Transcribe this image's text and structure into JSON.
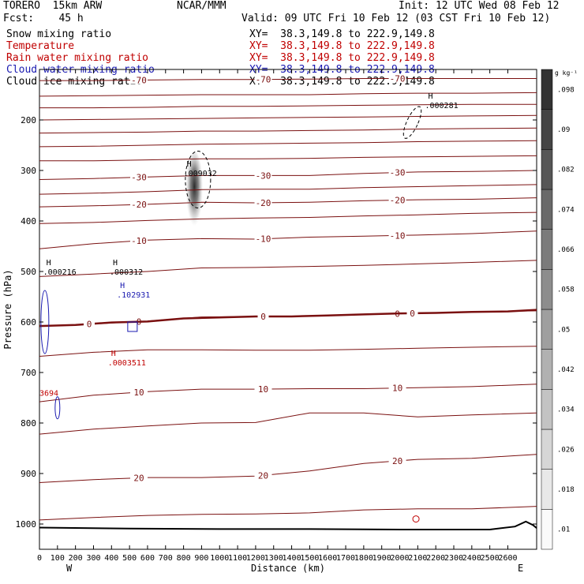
{
  "header": {
    "model": "TORERO  15km ARW",
    "forecast": "Fcst:    45 h",
    "center": "NCAR/MMM",
    "init": "Init: 12 UTC Wed 08 Feb 12",
    "valid": "Valid: 09 UTC Fri 10 Feb 12 (03 CST Fri 10 Feb 12)"
  },
  "fields": [
    {
      "name": "Snow mixing ratio",
      "xy": "XY=  38.3,149.8 to 222.9,149.8",
      "color": "#000000"
    },
    {
      "name": "Temperature",
      "xy": "XY=  38.3,149.8 to 222.9,149.8",
      "color": "#c00000"
    },
    {
      "name": "Rain water mixing ratio",
      "xy": "XY=  38.3,149.8 to 222.9,149.8",
      "color": "#c00000"
    },
    {
      "name": "Cloud water mixing ratio",
      "xy": "XY=  38.3,149.8 to 222.9,149.8",
      "color": "#1a1ab0"
    },
    {
      "name": "Cloud ice mixing ratio",
      "xy": "XY=  38.3,149.8 to 222.9,149.8",
      "color": "#000000"
    }
  ],
  "chart_data": {
    "type": "cross-section",
    "xlabel": "Distance (km)",
    "ylabel": "Pressure (hPa)",
    "xlim": [
      0,
      2760
    ],
    "ylim": [
      1050,
      100
    ],
    "x_ticks": [
      0,
      100,
      200,
      300,
      400,
      500,
      600,
      700,
      800,
      900,
      1000,
      1100,
      1200,
      1300,
      1400,
      1500,
      1600,
      1700,
      1800,
      1900,
      2000,
      2100,
      2200,
      2300,
      2400,
      2500,
      2600
    ],
    "x_tick_labels": [
      "0",
      "100",
      "200",
      "300",
      "400",
      "500",
      "600",
      "700",
      "800",
      "900",
      "1000",
      "1100",
      "1200",
      "1300",
      "1400",
      "1500",
      "1600",
      "1700",
      "1800",
      "1900",
      "2000",
      "2100",
      "2200",
      "2300",
      "2400",
      "2500",
      "2600"
    ],
    "y_ticks": [
      200,
      300,
      400,
      500,
      600,
      700,
      800,
      900,
      1000
    ],
    "y_tick_labels": [
      "200",
      "300",
      "400",
      "500",
      "600",
      "700",
      "800",
      "900",
      "1000"
    ],
    "endpoints": {
      "left": "W",
      "right": "E"
    },
    "colorbar": {
      "unit": "g kg⁻¹",
      "levels": [
        0.01,
        0.018,
        0.026,
        0.034,
        0.042,
        0.05,
        0.058,
        0.066,
        0.074,
        0.082,
        0.09,
        0.098
      ],
      "labels": [
        ".01",
        ".018",
        ".026",
        ".034",
        ".042",
        ".05",
        ".058",
        ".066",
        ".074",
        ".082",
        ".09",
        ".098"
      ]
    },
    "temperature_contours": [
      {
        "label": "-70",
        "x": [
          0,
          300,
          600,
          900,
          1200,
          1500,
          1800,
          2100,
          2400,
          2760
        ],
        "p": [
          122,
          122,
          121,
          120,
          120,
          119,
          118,
          118,
          118,
          118
        ]
      },
      {
        "label": "",
        "x": [
          0,
          300,
          600,
          900,
          1200,
          1500,
          1800,
          2100,
          2400,
          2760
        ],
        "p": [
          153,
          152,
          151,
          150,
          150,
          150,
          148,
          147,
          147,
          146
        ]
      },
      {
        "label": "",
        "x": [
          0,
          300,
          600,
          900,
          1200,
          1500,
          1800,
          2100,
          2400,
          2760
        ],
        "p": [
          176,
          176,
          175,
          173,
          173,
          172,
          171,
          170,
          169,
          169
        ]
      },
      {
        "label": "",
        "x": [
          0,
          300,
          600,
          900,
          1200,
          1500,
          1800,
          2100,
          2400,
          2760
        ],
        "p": [
          200,
          199,
          198,
          197,
          196,
          195,
          194,
          193,
          192,
          191
        ]
      },
      {
        "label": "",
        "x": [
          0,
          300,
          600,
          900,
          1200,
          1500,
          1800,
          2100,
          2400,
          2760
        ],
        "p": [
          226,
          225,
          224,
          222,
          222,
          221,
          220,
          218,
          217,
          216
        ]
      },
      {
        "label": "",
        "x": [
          0,
          300,
          600,
          900,
          1200,
          1500,
          1800,
          2100,
          2400,
          2760
        ],
        "p": [
          253,
          252,
          250,
          248,
          247,
          246,
          245,
          243,
          242,
          241
        ]
      },
      {
        "label": "",
        "x": [
          0,
          300,
          600,
          900,
          1200,
          1500,
          1800,
          2100,
          2400,
          2760
        ],
        "p": [
          281,
          281,
          279,
          277,
          277,
          276,
          274,
          273,
          272,
          271
        ]
      },
      {
        "label": "-30",
        "x": [
          0,
          300,
          600,
          900,
          1200,
          1500,
          1800,
          2100,
          2400,
          2760
        ],
        "p": [
          318,
          316,
          313,
          310,
          310,
          310,
          306,
          303,
          302,
          300
        ]
      },
      {
        "label": "",
        "x": [
          0,
          300,
          600,
          900,
          1200,
          1500,
          1800,
          2100,
          2400,
          2760
        ],
        "p": [
          347,
          345,
          342,
          338,
          337,
          337,
          334,
          332,
          330,
          328
        ]
      },
      {
        "label": "-20",
        "x": [
          0,
          300,
          600,
          900,
          1200,
          1500,
          1800,
          2100,
          2400,
          2760
        ],
        "p": [
          372,
          370,
          367,
          363,
          364,
          363,
          360,
          358,
          357,
          354
        ]
      },
      {
        "label": "",
        "x": [
          0,
          300,
          600,
          900,
          1200,
          1500,
          1800,
          2100,
          2400,
          2760
        ],
        "p": [
          405,
          403,
          399,
          396,
          394,
          393,
          390,
          388,
          385,
          383
        ]
      },
      {
        "label": "-10",
        "x": [
          0,
          300,
          600,
          900,
          1200,
          1500,
          1800,
          2100,
          2400,
          2760
        ],
        "p": [
          455,
          445,
          438,
          435,
          436,
          432,
          430,
          428,
          425,
          420
        ]
      },
      {
        "label": "",
        "x": [
          0,
          300,
          600,
          900,
          1200,
          1500,
          1800,
          2100,
          2400,
          2760
        ],
        "p": [
          510,
          505,
          500,
          493,
          492,
          490,
          488,
          485,
          482,
          478
        ]
      },
      {
        "label": "0",
        "x": [
          0,
          300,
          600,
          900,
          1200,
          1500,
          1800,
          2100,
          2400,
          2760
        ],
        "p": [
          608,
          604,
          598,
          590,
          589,
          588,
          585,
          583,
          580,
          578
        ]
      },
      {
        "label": "",
        "x": [
          0,
          300,
          600,
          900,
          1200,
          1500,
          1800,
          2100,
          2400,
          2760
        ],
        "p": [
          668,
          660,
          655,
          655,
          656,
          656,
          654,
          652,
          650,
          648
        ]
      },
      {
        "label": "10",
        "x": [
          0,
          300,
          600,
          900,
          1200,
          1500,
          1800,
          2100,
          2400,
          2760
        ],
        "p": [
          758,
          745,
          738,
          733,
          733,
          732,
          732,
          730,
          728,
          723
        ]
      },
      {
        "label": "",
        "x": [
          0,
          300,
          600,
          900,
          1200,
          1500,
          1800,
          2100,
          2400,
          2760
        ],
        "p": [
          822,
          812,
          806,
          800,
          799,
          780,
          780,
          788,
          784,
          780
        ]
      },
      {
        "label": "20",
        "x": [
          0,
          300,
          600,
          900,
          1200,
          1500,
          1800,
          2100,
          2400,
          2760
        ],
        "p": [
          918,
          912,
          908,
          908,
          905,
          895,
          880,
          872,
          870,
          862
        ]
      },
      {
        "label": "",
        "x": [
          0,
          300,
          600,
          900,
          1200,
          1500,
          1800,
          2100,
          2400,
          2760
        ],
        "p": [
          992,
          987,
          983,
          981,
          980,
          978,
          972,
          970,
          970,
          965
        ]
      }
    ],
    "thick_contour": {
      "label": "0",
      "x": [
        0,
        200,
        400,
        600,
        800,
        1000,
        1200,
        1400,
        1600,
        1800,
        2000,
        2200,
        2400,
        2600,
        2760
      ],
      "p": [
        608,
        606,
        601,
        599,
        593,
        591,
        589,
        589,
        587,
        585,
        583,
        582,
        580,
        579,
        576
      ]
    },
    "terrain": {
      "x": [
        0,
        500,
        1000,
        1500,
        2000,
        2500,
        2640,
        2700,
        2740,
        2760
      ],
      "p": [
        1007,
        1009,
        1010,
        1010,
        1011,
        1011,
        1005,
        995,
        1002,
        1008
      ]
    },
    "annotations": [
      {
        "symbol": "H",
        "value": ".000281",
        "x": 2140,
        "p": 170,
        "color": "#000000"
      },
      {
        "symbol": "H",
        "value": ".009032",
        "x": 800,
        "p": 305,
        "color": "#000000"
      },
      {
        "symbol": "H",
        "value": ".000216",
        "x": 20,
        "p": 500,
        "color": "#000000"
      },
      {
        "symbol": "H",
        "value": ".000312",
        "x": 390,
        "p": 500,
        "color": "#000000"
      },
      {
        "symbol": "H",
        "value": ".102931",
        "x": 430,
        "p": 545,
        "color": "#1a1ab0"
      },
      {
        "symbol": "H",
        "value": ".0003511",
        "x": 380,
        "p": 680,
        "color": "#c00000"
      },
      {
        "symbol": "",
        "value": "3694",
        "x": 0,
        "p": 740,
        "color": "#c00000"
      }
    ],
    "snow_shading": {
      "x": 860,
      "p": 340,
      "value": 0.09
    }
  }
}
